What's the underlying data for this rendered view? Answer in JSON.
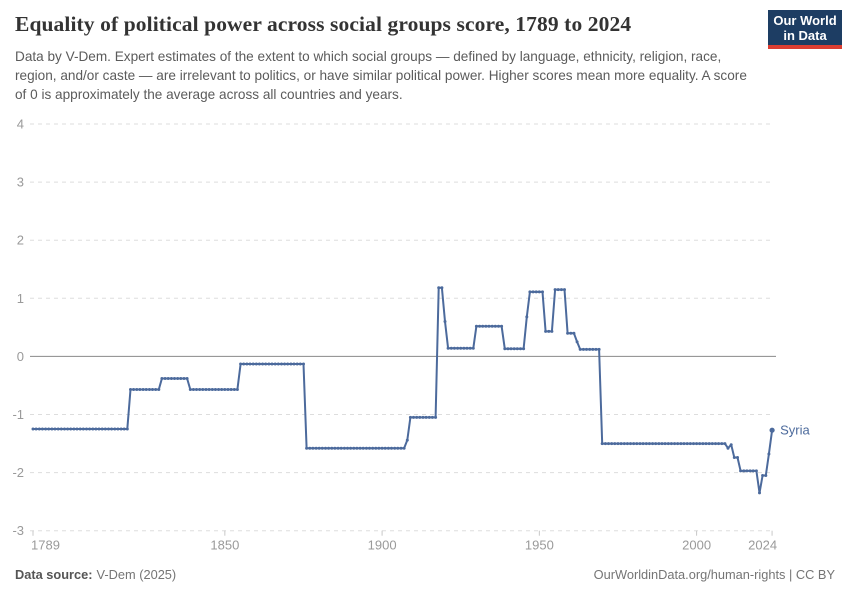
{
  "header": {
    "title": "Equality of political power across social groups score, 1789 to 2024",
    "subtitle": "Data by V-Dem. Expert estimates of the extent to which social groups — defined by language, ethnicity, religion, race, region, and/or caste — are irrelevant to politics, or have similar political power. Higher scores mean more equality. A score of 0 is approximately the average across all countries and years.",
    "logo": {
      "line1": "Our World",
      "line2": "in Data",
      "bg_color": "#1d3d63",
      "accent_color": "#dc3e32"
    }
  },
  "chart_data": {
    "type": "line",
    "title": "Equality of political power across social groups score, 1789 to 2024",
    "xlabel": "",
    "ylabel": "",
    "xlim": [
      1789,
      2024
    ],
    "ylim": [
      -3,
      4
    ],
    "x_ticks": [
      1789,
      1850,
      1900,
      1950,
      2000,
      2024
    ],
    "y_ticks": [
      4,
      3,
      2,
      1,
      0,
      -1,
      -2,
      -3
    ],
    "grid": "horizontal-dashed",
    "legend_position": "end-of-line-label",
    "line_color": "#4c6a9c",
    "axis_text_color": "#9a9a9a",
    "gridline_color": "#dddddd",
    "zero_line_color": "#8a8a8a",
    "series": [
      {
        "name": "Syria",
        "segments_year_from_to_value": [
          [
            1789,
            1819,
            -1.25
          ],
          [
            1820,
            1829,
            -0.57
          ],
          [
            1830,
            1838,
            -0.38
          ],
          [
            1839,
            1854,
            -0.57
          ],
          [
            1855,
            1875,
            -0.13
          ],
          [
            1876,
            1907,
            -1.58
          ],
          [
            1908,
            1908,
            -1.44
          ],
          [
            1909,
            1917,
            -1.05
          ],
          [
            1918,
            1919,
            1.18
          ],
          [
            1920,
            1920,
            0.6
          ],
          [
            1921,
            1929,
            0.14
          ],
          [
            1930,
            1938,
            0.52
          ],
          [
            1939,
            1945,
            0.13
          ],
          [
            1946,
            1946,
            0.68
          ],
          [
            1947,
            1951,
            1.11
          ],
          [
            1952,
            1954,
            0.43
          ],
          [
            1955,
            1958,
            1.15
          ],
          [
            1959,
            1961,
            0.4
          ],
          [
            1962,
            1962,
            0.25
          ],
          [
            1963,
            1969,
            0.12
          ],
          [
            1970,
            2009,
            -1.5
          ],
          [
            2010,
            2010,
            -1.58
          ],
          [
            2011,
            2011,
            -1.52
          ],
          [
            2012,
            2013,
            -1.74
          ],
          [
            2014,
            2019,
            -1.97
          ],
          [
            2020,
            2020,
            -2.35
          ],
          [
            2021,
            2022,
            -2.05
          ],
          [
            2023,
            2023,
            -1.68
          ],
          [
            2024,
            2024,
            -1.27
          ]
        ]
      }
    ]
  },
  "footer": {
    "source_label": "Data source:",
    "source_value": "V-Dem (2025)",
    "credit": "OurWorldinData.org/human-rights | CC BY"
  }
}
